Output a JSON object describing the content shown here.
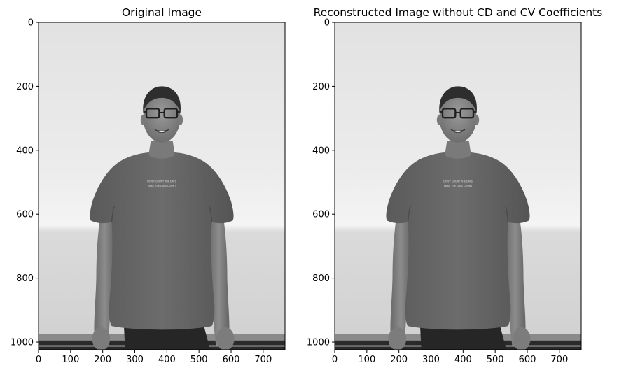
{
  "chart_data": [
    {
      "type": "image",
      "title": "Original Image",
      "xlabel": "",
      "ylabel": "",
      "xlim": [
        0,
        768
      ],
      "ylim": [
        1024,
        0
      ],
      "xticks": [
        0,
        100,
        200,
        300,
        400,
        500,
        600,
        700
      ],
      "yticks": [
        0,
        200,
        400,
        600,
        800,
        1000
      ],
      "image_content": "grayscale photo of a smiling man with glasses in a t-shirt against a light wall",
      "shirt_text": [
        "DON'T COUNT THE DAYS",
        "MAKE THE DAYS COUNT"
      ]
    },
    {
      "type": "image",
      "title": "Reconstructed Image without CD and CV Coefficients",
      "xlabel": "",
      "ylabel": "",
      "xlim": [
        0,
        768
      ],
      "ylim": [
        1024,
        0
      ],
      "xticks": [
        0,
        100,
        200,
        300,
        400,
        500,
        600,
        700
      ],
      "yticks": [
        0,
        200,
        400,
        600,
        800,
        1000
      ],
      "image_content": "grayscale photo of a smiling man with glasses in a t-shirt against a light wall",
      "shirt_text": [
        "DON'T COUNT THE DAYS",
        "MAKE THE DAYS COUNT"
      ]
    }
  ]
}
